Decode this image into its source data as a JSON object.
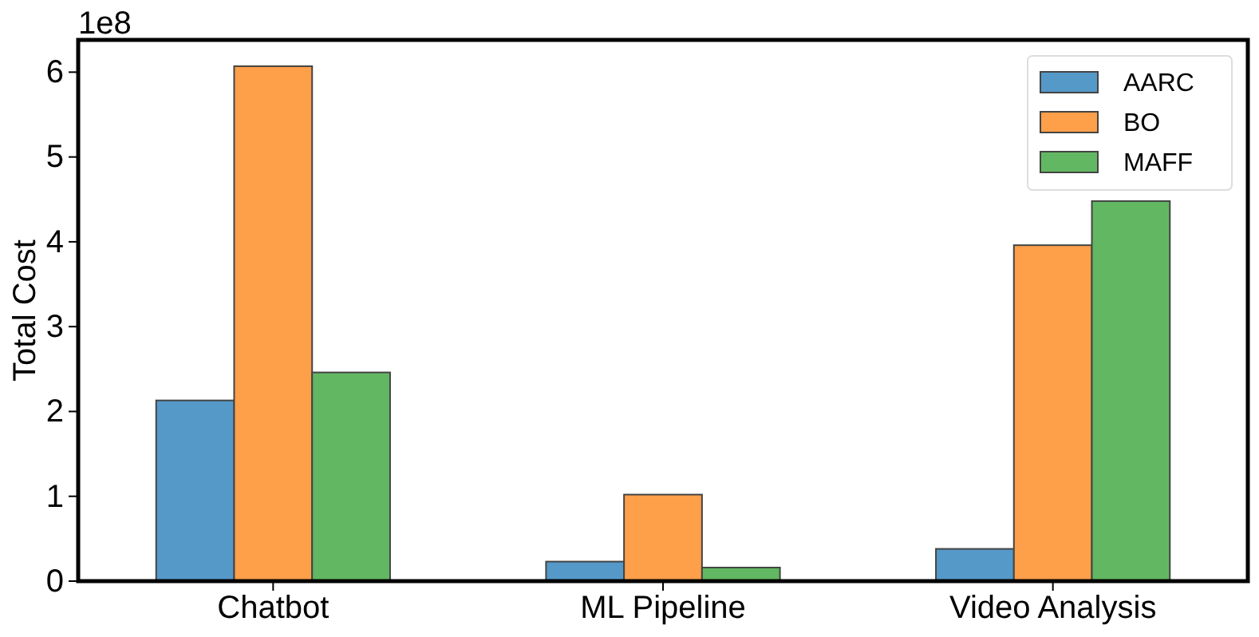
{
  "chart_data": {
    "type": "bar",
    "ylabel": "Total Cost",
    "categories": [
      "Chatbot",
      "ML Pipeline",
      "Video Analysis"
    ],
    "series": [
      {
        "name": "AARC",
        "color": "#5599c8",
        "values": [
          2.13,
          0.23,
          0.38
        ]
      },
      {
        "name": "BO",
        "color": "#fe9f4a",
        "values": [
          6.07,
          1.02,
          3.96
        ]
      },
      {
        "name": "MAFF",
        "color": "#62b862",
        "values": [
          2.46,
          0.16,
          4.48
        ]
      }
    ],
    "ylim": [
      0,
      6.38
    ],
    "yticks": [
      0,
      1,
      2,
      3,
      4,
      5,
      6
    ],
    "annotations": [
      "1e8"
    ],
    "legend": "top right",
    "grid": false
  }
}
